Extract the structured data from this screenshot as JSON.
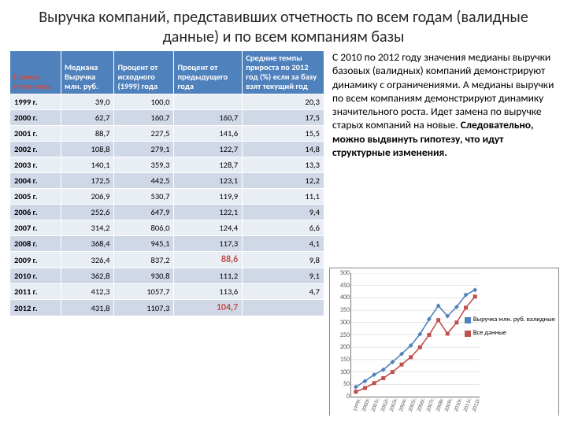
{
  "title": "Выручка компаний, представивших отчетность по всем годам (валидные данные) и по всем компаниям базы",
  "table": {
    "headers": {
      "h0": "Полная отчетность",
      "h1": "Медиана Выручка млн. руб.",
      "h2": "Процент от исходного (1999) года",
      "h3": "Процент от предыдущего года",
      "h4": "Средние темпы прироста по 2012 год (%) если за базу взят текущий год"
    },
    "rows": [
      {
        "y": "1999 г.",
        "v1": "39,0",
        "v2": "100,0",
        "v3": "",
        "v4": "20,3"
      },
      {
        "y": "2000 г.",
        "v1": "62,7",
        "v2": "160,7",
        "v3": "160,7",
        "v4": "17,5"
      },
      {
        "y": "2001 г.",
        "v1": "88,7",
        "v2": "227,5",
        "v3": "141,6",
        "v4": "15,5"
      },
      {
        "y": "2002 г.",
        "v1": "108,8",
        "v2": "279,1",
        "v3": "122,7",
        "v4": "14,8"
      },
      {
        "y": "2003 г.",
        "v1": "140,1",
        "v2": "359,3",
        "v3": "128,7",
        "v4": "13,3"
      },
      {
        "y": "2004 г.",
        "v1": "172,5",
        "v2": "442,5",
        "v3": "123,1",
        "v4": "12,2"
      },
      {
        "y": "2005 г.",
        "v1": "206,9",
        "v2": "530,7",
        "v3": "119,9",
        "v4": "11,1"
      },
      {
        "y": "2006 г.",
        "v1": "252,6",
        "v2": "647,9",
        "v3": "122,1",
        "v4": "9,4"
      },
      {
        "y": "2007 г.",
        "v1": "314,2",
        "v2": "806,0",
        "v3": "124,4",
        "v4": "6,6"
      },
      {
        "y": "2008 г.",
        "v1": "368,4",
        "v2": "945,1",
        "v3": "117,3",
        "v4": "4,1"
      },
      {
        "y": "2009 г.",
        "v1": "326,4",
        "v2": "837,2",
        "v3": "88,6",
        "v4": "9,8",
        "hlv3": true
      },
      {
        "y": "2010 г.",
        "v1": "362,8",
        "v2": "930,8",
        "v3": "111,2",
        "v4": "9,1"
      },
      {
        "y": "2011 г.",
        "v1": "412,3",
        "v2": "1057,7",
        "v3": "113,6",
        "v4": "4,7"
      },
      {
        "y": "2012 г.",
        "v1": "431,8",
        "v2": "1107,3",
        "v3": "104,7",
        "v4": "",
        "hlv3": true
      }
    ]
  },
  "paragraph": {
    "pre": "С 2010 по 2012 году значения медианы выручки базовых (валидных) компаний демонстрируют динамику с ограничениями. А медианы выручки по всем компаниям демонстрируют динамику значительного роста. Идет замена по выручке старых компаний на новые. ",
    "bold": "Следовательно, можно выдвинуть гипотезу, что идут структурные изменения."
  },
  "chart": {
    "ymax": 500,
    "ytick_step": 50,
    "categories": [
      "1999г.",
      "2000г.",
      "2001г.",
      "2002г.",
      "2003г.",
      "2004г.",
      "2005г.",
      "2006г.",
      "2007г.",
      "2008г.",
      "2009г.",
      "2010г.",
      "2011г.",
      "2012г."
    ],
    "series1": {
      "name": "Выручка млн. руб. валидные",
      "color": "#4f81bd",
      "marker": "diamond",
      "values": [
        39,
        63,
        89,
        109,
        140,
        173,
        207,
        253,
        314,
        368,
        326,
        363,
        412,
        432
      ]
    },
    "series2": {
      "name": "Все данные",
      "color": "#c0504d",
      "marker": "square",
      "values": [
        20,
        35,
        55,
        75,
        100,
        130,
        160,
        200,
        250,
        310,
        255,
        300,
        360,
        405
      ]
    }
  }
}
